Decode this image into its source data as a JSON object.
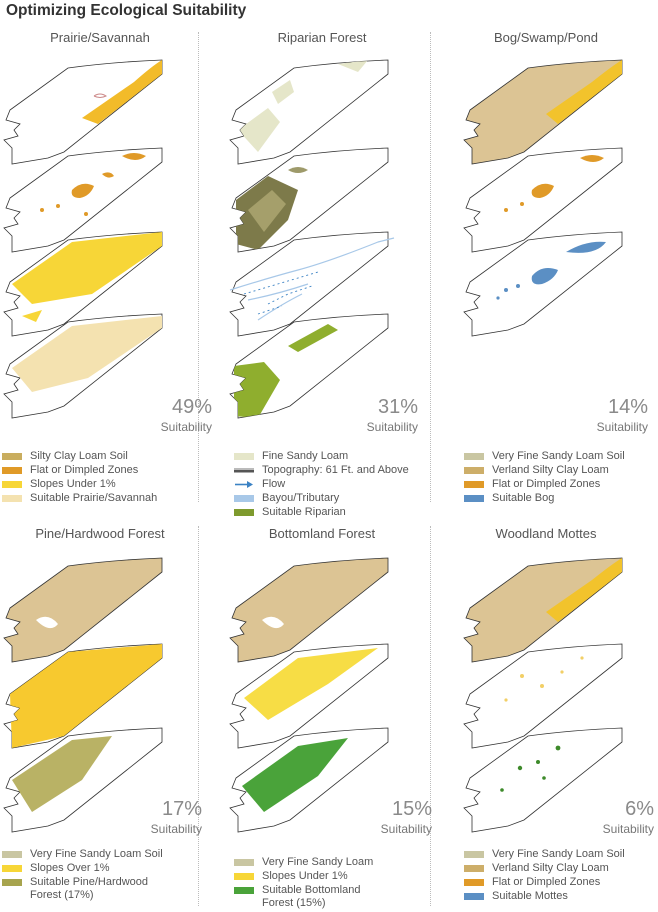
{
  "title": "Optimizing Ecological Suitability",
  "panels": [
    {
      "title": "Prairie/Savannah",
      "percent": "49%",
      "suitability": "Suitability",
      "legend": [
        {
          "label": "Silty Clay Loam Soil",
          "color": "#c9ad5e"
        },
        {
          "label": "Flat or Dimpled Zones",
          "color": "#e09a28"
        },
        {
          "label": "Slopes Under 1%",
          "color": "#f7d637"
        },
        {
          "label": "Suitable Prairie/Savannah",
          "color": "#f4e2b0"
        }
      ]
    },
    {
      "title": "Riparian Forest",
      "percent": "31%",
      "suitability": "Suitability",
      "legend": [
        {
          "label": "Fine Sandy Loam",
          "color": "#e5e6c9"
        },
        {
          "label": "Topography: 61 Ft. and Above",
          "color": "#8a8a70"
        },
        {
          "label": "Flow",
          "color": "#3b82c4"
        },
        {
          "label": "Bayou/Tributary",
          "color": "#a8c8e8"
        },
        {
          "label": "Suitable Riparian",
          "color": "#7e9a2e"
        }
      ]
    },
    {
      "title": "Bog/Swamp/Pond",
      "percent": "14%",
      "suitability": "Suitability",
      "legend": [
        {
          "label": "Very Fine Sandy Loam Soil",
          "color": "#c9c6a2"
        },
        {
          "label": "Verland Silty Clay Loam",
          "color": "#cdae69"
        },
        {
          "label": "Flat or Dimpled Zones",
          "color": "#e09a28"
        },
        {
          "label": "Suitable Bog",
          "color": "#5b8fc4"
        }
      ]
    },
    {
      "title": "Pine/Hardwood Forest",
      "percent": "17%",
      "suitability": "Suitability",
      "legend": [
        {
          "label": "Very Fine Sandy Loam Soil",
          "color": "#c9c6a2"
        },
        {
          "label": "Slopes Over 1%",
          "color": "#f7d637"
        },
        {
          "label": "Suitable Pine/Hardwood Forest (17%)",
          "color": "#a7a44e"
        }
      ]
    },
    {
      "title": "Bottomland Forest",
      "percent": "15%",
      "suitability": "Suitability",
      "legend": [
        {
          "label": "Very Fine Sandy Loam",
          "color": "#c9c6a2"
        },
        {
          "label": "Slopes Under 1%",
          "color": "#f7d637"
        },
        {
          "label": "Suitable Bottomland Forest (15%)",
          "color": "#4aa33a"
        }
      ]
    },
    {
      "title": "Woodland Mottes",
      "percent": "6%",
      "suitability": "Suitability",
      "legend": [
        {
          "label": "Very Fine Sandy Loam Soil",
          "color": "#c9c6a2"
        },
        {
          "label": "Verland Silty Clay Loam",
          "color": "#cdae69"
        },
        {
          "label": "Flat or Dimpled Zones",
          "color": "#e09a28"
        },
        {
          "label": "Suitable Mottes",
          "color": "#5b8fc4"
        }
      ]
    }
  ]
}
